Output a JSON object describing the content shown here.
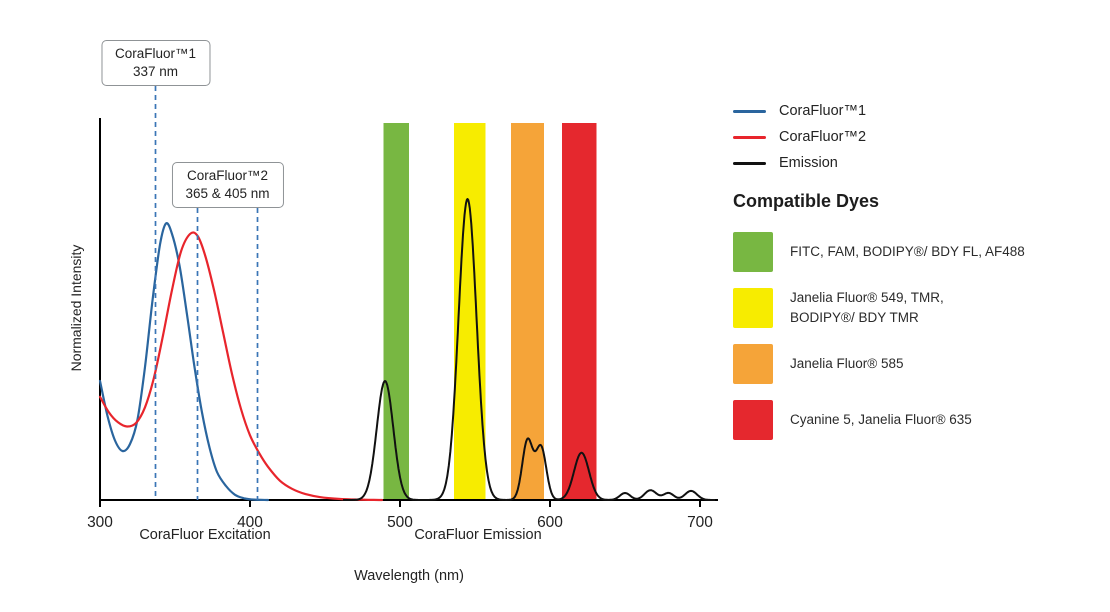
{
  "chart_data": {
    "type": "line",
    "xlabel": "Wavelength (nm)",
    "ylabel": "Normalized Intensity",
    "xlim": [
      300,
      712
    ],
    "ylim": [
      0,
      1.1
    ],
    "grid": false,
    "x_ticks": [
      300,
      400,
      500,
      600,
      700
    ],
    "region_labels": [
      {
        "text": "CoraFluor Excitation",
        "center_nm": 370
      },
      {
        "text": "CoraFluor Emission",
        "center_nm": 552
      }
    ],
    "annotations": [
      {
        "label": "CoraFluor™1",
        "value": "337 nm",
        "lines_at_nm": [
          337
        ]
      },
      {
        "label": "CoraFluor™2",
        "value": "365 & 405 nm",
        "lines_at_nm": [
          365,
          405
        ]
      }
    ],
    "bands": [
      {
        "name": "green-window",
        "color": "#78b742",
        "from_nm": 489,
        "to_nm": 506
      },
      {
        "name": "yellow-window",
        "color": "#f7ec00",
        "from_nm": 536,
        "to_nm": 557
      },
      {
        "name": "orange-window",
        "color": "#f5a439",
        "from_nm": 574,
        "to_nm": 596
      },
      {
        "name": "red-window",
        "color": "#e5282e",
        "from_nm": 608,
        "to_nm": 631
      }
    ],
    "series": [
      {
        "name": "CoraFluor™1",
        "kind": "excitation",
        "color": "#2a659e",
        "x": [
          300,
          305,
          310,
          315,
          320,
          325,
          330,
          335,
          340,
          344,
          348,
          353,
          358,
          363,
          368,
          373,
          378,
          384,
          390,
          396,
          403,
          412
        ],
        "y": [
          0.34,
          0.24,
          0.17,
          0.14,
          0.16,
          0.23,
          0.38,
          0.57,
          0.73,
          0.79,
          0.76,
          0.67,
          0.53,
          0.38,
          0.25,
          0.15,
          0.08,
          0.04,
          0.015,
          0.005,
          0.001,
          0
        ]
      },
      {
        "name": "CoraFluor™2",
        "kind": "excitation",
        "color": "#e8252c",
        "x": [
          300,
          306,
          312,
          318,
          324,
          330,
          336,
          342,
          348,
          354,
          360,
          365,
          370,
          376,
          382,
          388,
          394,
          400,
          406,
          412,
          420,
          428,
          437,
          447,
          459,
          472,
          488
        ],
        "y": [
          0.295,
          0.25,
          0.222,
          0.21,
          0.22,
          0.265,
          0.35,
          0.47,
          0.6,
          0.71,
          0.76,
          0.755,
          0.7,
          0.6,
          0.48,
          0.36,
          0.26,
          0.185,
          0.135,
          0.095,
          0.055,
          0.032,
          0.017,
          0.008,
          0.003,
          0.001,
          0
        ]
      },
      {
        "name": "Emission",
        "kind": "emission",
        "color": "#111111",
        "peaks": [
          {
            "center_nm": 490,
            "height": 0.34,
            "sigma_nm": 5.5
          },
          {
            "center_nm": 545,
            "height": 0.86,
            "sigma_nm": 6
          },
          {
            "center_nm": 585,
            "height": 0.17,
            "sigma_nm": 3.5
          },
          {
            "center_nm": 594,
            "height": 0.15,
            "sigma_nm": 3.5
          },
          {
            "center_nm": 621,
            "height": 0.135,
            "sigma_nm": 5
          },
          {
            "center_nm": 650,
            "height": 0.02,
            "sigma_nm": 3.5
          },
          {
            "center_nm": 667,
            "height": 0.028,
            "sigma_nm": 4
          },
          {
            "center_nm": 679,
            "height": 0.02,
            "sigma_nm": 3.5
          },
          {
            "center_nm": 694,
            "height": 0.026,
            "sigma_nm": 4
          }
        ]
      }
    ]
  },
  "legend": {
    "items": [
      {
        "label": "CoraFluor™1",
        "color": "#2a659e"
      },
      {
        "label": "CoraFluor™2",
        "color": "#e8252c"
      },
      {
        "label": "Emission",
        "color": "#111111"
      }
    ]
  },
  "compatible_dyes": {
    "title": "Compatible Dyes",
    "items": [
      {
        "color": "#78b742",
        "lines": [
          "FITC, FAM, BODIPY®/ BDY FL, AF488"
        ]
      },
      {
        "color": "#f7ec00",
        "lines": [
          "Janelia Fluor® 549, TMR,",
          "BODIPY®/ BDY TMR"
        ]
      },
      {
        "color": "#f5a439",
        "lines": [
          "Janelia Fluor® 585"
        ]
      },
      {
        "color": "#e5282e",
        "lines": [
          "Cyanine 5, Janelia Fluor® 635"
        ]
      }
    ]
  },
  "colors": {
    "axis": "#000000",
    "dashed_guide": "#3a76b6",
    "text": "#2a2a2a"
  }
}
